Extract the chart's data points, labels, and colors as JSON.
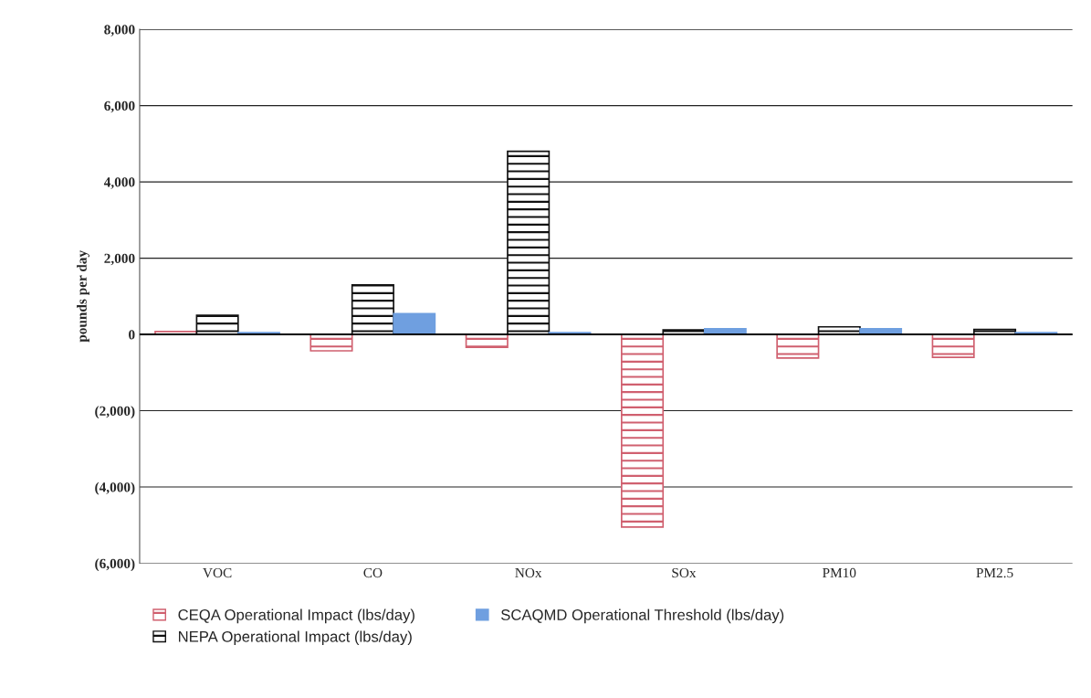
{
  "chart_data": {
    "type": "bar",
    "ylabel": "pounds per day",
    "categories": [
      "VOC",
      "CO",
      "NOx",
      "SOx",
      "PM10",
      "PM2.5"
    ],
    "series": [
      {
        "name": "CEQA Operational Impact (lbs/day)",
        "color": "#d0606f",
        "values": [
          80,
          -430,
          -340,
          -5050,
          -620,
          -600
        ]
      },
      {
        "name": "NEPA Operational Impact (lbs/day)",
        "color": "#111111",
        "values": [
          500,
          1300,
          4800,
          120,
          200,
          130
        ]
      },
      {
        "name": "SCAQMD Operational Threshold (lbs/day)",
        "color": "#6f9fe0",
        "values": [
          50,
          550,
          50,
          150,
          150,
          50
        ]
      }
    ],
    "ylim": [
      -6000,
      8000
    ],
    "yticks": [
      {
        "value": -6000,
        "label": "(6,000)"
      },
      {
        "value": -4000,
        "label": "(4,000)"
      },
      {
        "value": -2000,
        "label": "(2,000)"
      },
      0,
      {
        "value": 2000,
        "label": "2,000"
      },
      {
        "value": 4000,
        "label": "4,000"
      },
      {
        "value": 6000,
        "label": "6,000"
      },
      {
        "value": 8000,
        "label": "8,000"
      }
    ],
    "grid": "y",
    "legend": "bottom"
  }
}
